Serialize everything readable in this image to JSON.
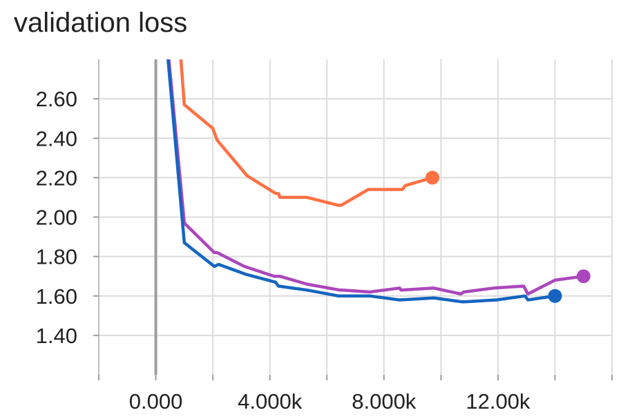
{
  "chart_data": {
    "type": "line",
    "title": "validation loss",
    "xlabel": "",
    "ylabel": "",
    "xlim": [
      -2000,
      16000
    ],
    "ylim": [
      1.2,
      2.8
    ],
    "x_ticks": [
      0,
      4000,
      8000,
      12000
    ],
    "x_tick_labels": [
      "0.000",
      "4.000k",
      "8.000k",
      "12.00k"
    ],
    "y_ticks": [
      1.4,
      1.6,
      1.8,
      2.0,
      2.2,
      2.4,
      2.6
    ],
    "y_tick_labels": [
      "1.40",
      "1.60",
      "1.80",
      "2.00",
      "2.20",
      "2.40",
      "2.60"
    ],
    "grid": true,
    "legend": "none",
    "series": [
      {
        "color": "#ff7043",
        "x": [
          750,
          1000,
          2000,
          2150,
          3200,
          4200,
          4300,
          4350,
          5300,
          6400,
          6500,
          7450,
          8650,
          8750,
          9700
        ],
        "y": [
          3.05,
          2.57,
          2.45,
          2.39,
          2.21,
          2.12,
          2.12,
          2.1,
          2.1,
          2.06,
          2.06,
          2.14,
          2.14,
          2.16,
          2.2
        ]
      },
      {
        "color": "#ab47bc",
        "x": [
          0,
          1000,
          2050,
          2150,
          3100,
          4150,
          4350,
          5300,
          6450,
          6550,
          7500,
          8550,
          8600,
          9750,
          10700,
          10800,
          11850,
          12900,
          13050,
          14000,
          15000
        ],
        "y": [
          3.5,
          1.97,
          1.82,
          1.82,
          1.75,
          1.7,
          1.7,
          1.66,
          1.63,
          1.63,
          1.62,
          1.64,
          1.63,
          1.64,
          1.61,
          1.62,
          1.64,
          1.65,
          1.61,
          1.68,
          1.7
        ]
      },
      {
        "color": "#1565c0",
        "x": [
          0,
          1000,
          2050,
          2200,
          3150,
          4200,
          4300,
          5300,
          6400,
          6550,
          7500,
          8550,
          9750,
          10750,
          10800,
          11950,
          12950,
          13050,
          14000
        ],
        "y": [
          3.5,
          1.87,
          1.75,
          1.76,
          1.71,
          1.67,
          1.65,
          1.63,
          1.6,
          1.6,
          1.6,
          1.58,
          1.59,
          1.57,
          1.57,
          1.58,
          1.6,
          1.58,
          1.6
        ]
      }
    ]
  }
}
